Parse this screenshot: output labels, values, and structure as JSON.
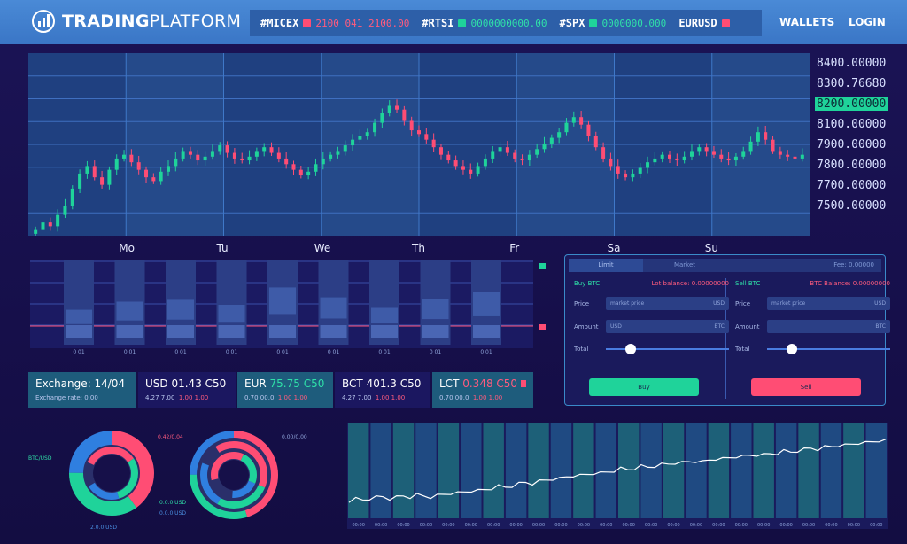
{
  "header": {
    "logo_bold": "TRADING",
    "logo_light": "PLATFORM",
    "ticker": [
      {
        "symbol": "#MICEX",
        "trend": "down",
        "value": "2100 041 2100.00"
      },
      {
        "symbol": "#RTSI",
        "trend": "up",
        "value": "0000000000.00"
      },
      {
        "symbol": "#SPX",
        "trend": "up",
        "value": "0000000.000"
      },
      {
        "symbol": "EURUSD",
        "trend": "down",
        "value": ""
      }
    ],
    "nav": {
      "wallets": "WALLETS",
      "login": "LOGIN"
    }
  },
  "colors": {
    "up": "#1fd39a",
    "down": "#ff4d74",
    "accent": "#3a8ac9"
  },
  "chart_data": [
    {
      "type": "candlestick",
      "x_labels": [
        "Mo",
        "Tu",
        "We",
        "Th",
        "Fr",
        "Sa",
        "Su"
      ],
      "y_ticks": [
        "8400.00000",
        "8300.76680",
        "8200.00000",
        "8100.00000",
        "7900.00000",
        "7800.00000",
        "7700.00000",
        "7500.00000"
      ],
      "highlighted_tick": "8200.00000",
      "ylim": [
        7450,
        8420
      ],
      "close": [
        7480,
        7520,
        7500,
        7560,
        7610,
        7700,
        7780,
        7820,
        7760,
        7720,
        7800,
        7860,
        7880,
        7840,
        7800,
        7760,
        7740,
        7790,
        7820,
        7860,
        7900,
        7880,
        7850,
        7870,
        7900,
        7930,
        7890,
        7860,
        7850,
        7870,
        7900,
        7920,
        7890,
        7860,
        7830,
        7800,
        7770,
        7790,
        7830,
        7860,
        7880,
        7900,
        7930,
        7960,
        7980,
        8000,
        8050,
        8100,
        8140,
        8120,
        8060,
        8010,
        7990,
        7960,
        7920,
        7880,
        7850,
        7820,
        7800,
        7780,
        7820,
        7860,
        7900,
        7920,
        7890,
        7860,
        7850,
        7880,
        7910,
        7940,
        7970,
        8000,
        8050,
        8080,
        8040,
        7980,
        7920,
        7860,
        7820,
        7780,
        7760,
        7780,
        7810,
        7840,
        7860,
        7880,
        7860,
        7850,
        7870,
        7900,
        7920,
        7900,
        7880,
        7860,
        7850,
        7870,
        7900,
        7950,
        8000,
        7960,
        7900,
        7880,
        7870,
        7860,
        7880
      ]
    },
    {
      "type": "bar",
      "y_ticks": [
        "100",
        "80",
        "60",
        "40",
        "20"
      ],
      "categories": [
        "0 01",
        "0 01",
        "0 01",
        "0 01",
        "0 01",
        "0 01",
        "0 01",
        "0 01",
        "0 01"
      ],
      "values": [
        42,
        55,
        58,
        50,
        78,
        62,
        45,
        60,
        70
      ]
    },
    {
      "type": "line",
      "values": [
        22,
        24,
        23,
        25,
        26,
        27,
        25,
        26,
        28,
        27,
        29,
        28,
        27,
        28,
        30,
        32,
        31,
        33,
        35,
        34,
        36,
        38,
        40,
        39,
        41,
        43,
        45,
        44,
        46,
        48,
        50,
        49,
        52,
        54,
        53,
        55,
        57,
        56,
        58,
        60,
        62,
        61,
        63,
        65,
        64,
        66,
        67,
        68,
        70,
        69,
        71,
        72,
        70,
        73,
        75,
        74,
        76,
        78,
        77,
        79,
        80,
        79,
        81,
        82,
        84,
        83,
        85,
        86,
        88,
        87,
        89,
        90,
        92,
        91,
        93,
        95,
        94,
        96,
        98,
        97
      ]
    },
    {
      "type": "pie",
      "slices": [
        {
          "value": 40,
          "color": "#ff4d74"
        },
        {
          "value": 35,
          "color": "#1fd39a"
        },
        {
          "value": 25,
          "color": "#2f7fe0"
        }
      ]
    },
    {
      "type": "pie",
      "slices": [
        {
          "value": 45,
          "color": "#ff4d74"
        },
        {
          "value": 30,
          "color": "#1fd39a"
        },
        {
          "value": 25,
          "color": "#2f7fe0"
        }
      ]
    }
  ],
  "exchange": {
    "main": {
      "title": "Exchange: 14/04",
      "sub": "Exchange rate: 0.00"
    },
    "pairs": [
      {
        "name": "USD",
        "rate": "01.43 C50",
        "trend": "down",
        "sub_a": "4.27 7.00",
        "sub_b": "1.00 1.00"
      },
      {
        "name": "EUR",
        "rate": "75.75 C50",
        "trend": "up",
        "sub_a": "0.70 00.0",
        "sub_b": "1.00 1.00"
      },
      {
        "name": "BCT",
        "rate": "401.3 C50",
        "trend": "down",
        "sub_a": "4.27 7.00",
        "sub_b": "1.00 1.00"
      },
      {
        "name": "LCT",
        "rate": "0.348 C50",
        "trend": "down",
        "sub_a": "0.70 00.0",
        "sub_b": "1.00 1.00"
      }
    ]
  },
  "order": {
    "tabs": [
      "Limit",
      "Market",
      "Fee: 0.00000"
    ],
    "buy": {
      "head_left": "Buy BTC",
      "head_right": "Lot balance: 0.00000000",
      "price_label": "Price",
      "price_field": "market price",
      "price_unit": "USD",
      "amount_label": "Amount",
      "amount_field": "USD",
      "amount_unit": "BTC",
      "total_label": "Total",
      "slider": 0.2,
      "button": "Buy"
    },
    "sell": {
      "head_left": "Sell BTC",
      "head_right": "BTC Balance: 0.00000000",
      "price_label": "Price",
      "price_field": "market price",
      "price_unit": "USD",
      "amount_label": "Amount",
      "amount_field": "",
      "amount_unit": "BTC",
      "total_label": "Total",
      "slider": 0.2,
      "button": "Sell"
    }
  },
  "donuts": {
    "left": {
      "label_a": "BTC/USD",
      "label_b": "0.42/0.04",
      "label_c": "2.0.0 USD"
    },
    "right": {
      "label_a": "0.00/0.00",
      "label_b": "0.0.0 USD",
      "label_c": "0.0.0 USD"
    }
  }
}
